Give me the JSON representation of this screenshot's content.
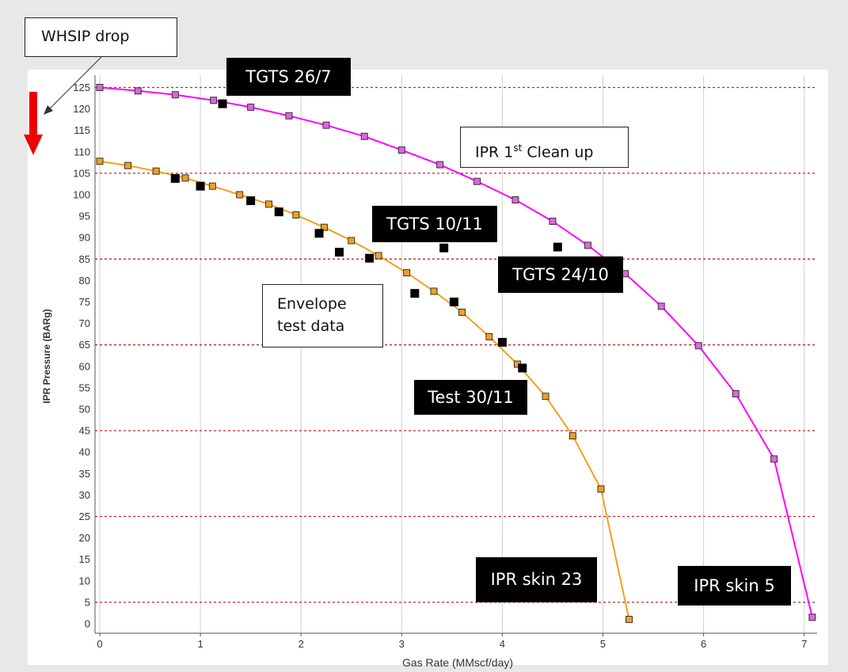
{
  "chart_data": {
    "type": "line",
    "xlabel": "Gas Rate (MMscf/day)",
    "ylabel": "IPR Pressure (BARg)",
    "xlim": [
      0,
      7.1
    ],
    "ylim": [
      0,
      127
    ],
    "x_ticks": [
      "0",
      "1",
      "2",
      "3",
      "4",
      "5",
      "6",
      "7"
    ],
    "y_ticks": [
      "0",
      "5",
      "10",
      "15",
      "20",
      "25",
      "30",
      "35",
      "40",
      "45",
      "50",
      "55",
      "60",
      "65",
      "70",
      "75",
      "80",
      "85",
      "90",
      "95",
      "100",
      "105",
      "110",
      "115",
      "120",
      "125"
    ],
    "grid": {
      "vertical": true,
      "horizontal_dashed_red_at": [
        5,
        25,
        45,
        65,
        85,
        105,
        125
      ]
    },
    "series": [
      {
        "name": "IPR skin 5",
        "color": "#ff00ff",
        "marker_fill": "#dd66dd",
        "x": [
          0,
          0.38,
          0.75,
          1.13,
          1.5,
          1.88,
          2.25,
          2.63,
          3.0,
          3.38,
          3.75,
          4.13,
          4.5,
          4.85,
          5.22,
          5.58,
          5.95,
          6.32,
          6.7,
          7.08
        ],
        "y": [
          125,
          124.2,
          123.3,
          122,
          120.4,
          118.4,
          116.2,
          113.6,
          110.4,
          107,
          103.1,
          98.8,
          93.8,
          88.2,
          81.6,
          74,
          64.8,
          53.6,
          38.4,
          1.5
        ]
      },
      {
        "name": "IPR skin 23",
        "color": "#f0a020",
        "marker_fill": "#f0a020",
        "x": [
          0,
          0.28,
          0.56,
          0.85,
          1.12,
          1.39,
          1.68,
          1.95,
          2.23,
          2.5,
          2.77,
          3.05,
          3.32,
          3.6,
          3.87,
          4.15,
          4.43,
          4.7,
          4.98,
          5.26
        ],
        "y": [
          107.8,
          106.8,
          105.5,
          103.9,
          102,
          100,
          97.8,
          95.3,
          92.4,
          89.3,
          85.8,
          81.8,
          77.5,
          72.6,
          66.9,
          60.5,
          53,
          43.8,
          31.4,
          1
        ]
      },
      {
        "name": "Envelope test data",
        "color": "#000000",
        "marker_fill": "#000000",
        "x": [
          0.75,
          1.0,
          1.5,
          1.78,
          2.18,
          2.38,
          2.68,
          3.13,
          3.42,
          3.52,
          4.0,
          4.2,
          4.55,
          1.22
        ],
        "y": [
          103.8,
          102.0,
          98.6,
          96.0,
          91.0,
          86.6,
          85.2,
          77.0,
          87.6,
          75.0,
          65.6,
          59.6,
          87.8,
          121.2
        ]
      }
    ]
  },
  "callouts": {
    "whsip": "WHSIP drop",
    "tgts_26_7": "TGTS 26/7",
    "ipr_clean_up_pre": "IPR 1",
    "ipr_clean_up_sup": "st",
    "ipr_clean_up_post": " Clean up",
    "tgts_10_11": "TGTS 10/11",
    "tgts_24_10": "TGTS 24/10",
    "envelope_line1": "Envelope",
    "envelope_line2": "test data",
    "test_30_11": "Test 30/11",
    "ipr_skin_23": "IPR skin 23",
    "ipr_skin_5": "IPR skin 5"
  },
  "colors": {
    "drop_arrow": "#ee0000",
    "grid_red": "#cc2222",
    "grid_gray": "#cfcfcf"
  }
}
